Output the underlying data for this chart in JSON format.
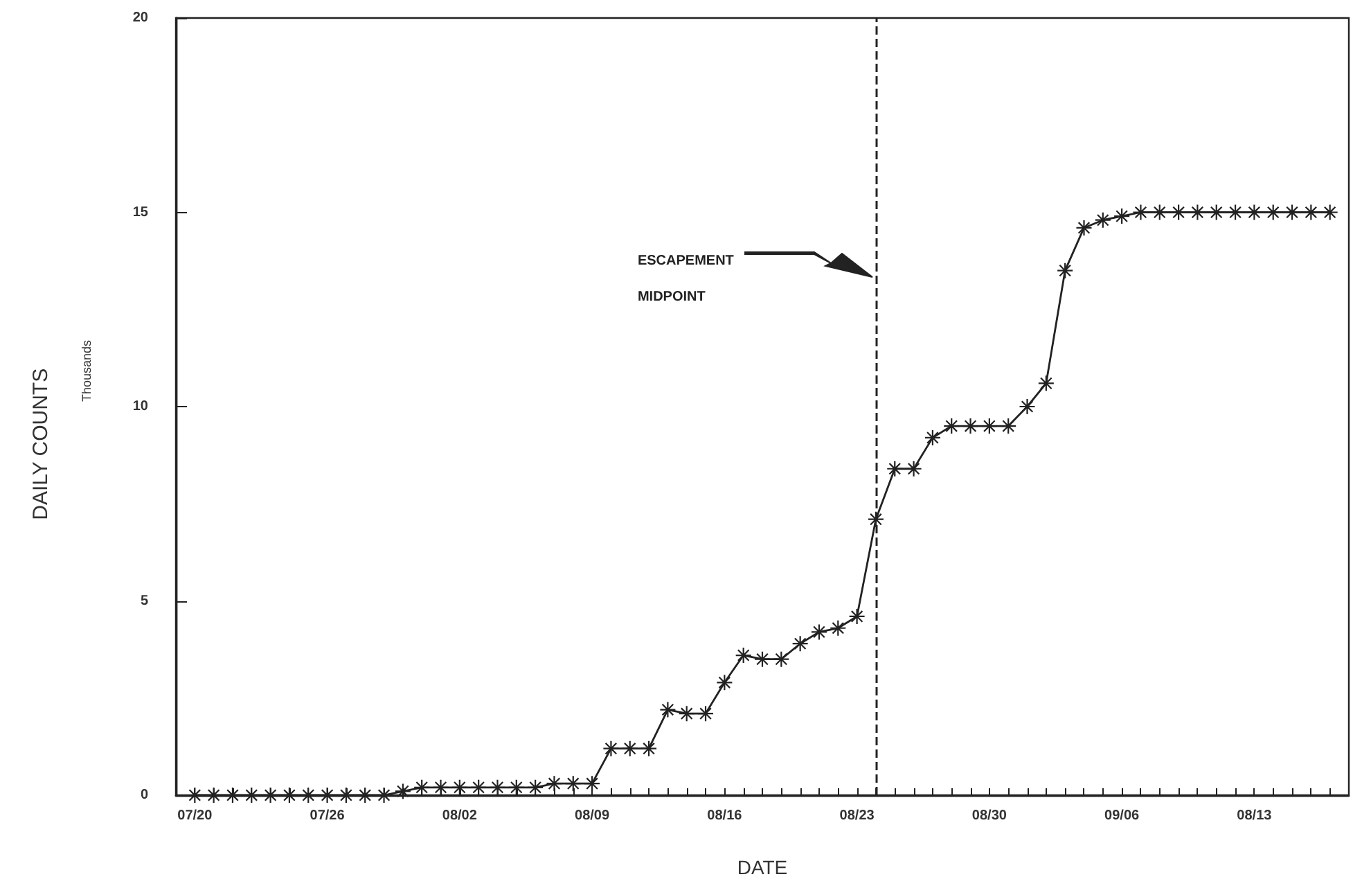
{
  "chart_data": {
    "type": "line",
    "xlabel": "DATE",
    "ylabel": "DAILY COUNTS",
    "annotations": [
      "Thousands"
    ],
    "x": [
      "--07-19",
      "--07-20",
      "--07-21",
      "--07-22",
      "--07-23",
      "--07-24",
      "--07-25",
      "--07-26",
      "--07-27",
      "--07-28",
      "--07-29",
      "--07-30",
      "--07-31",
      "--08-01",
      "--08-02",
      "--08-03",
      "--08-04",
      "--08-05",
      "--08-06",
      "--08-07",
      "--08-08",
      "--08-09",
      "--08-10",
      "--08-11",
      "--08-12",
      "--08-13",
      "--08-14",
      "--08-15",
      "--08-16",
      "--08-17",
      "--08-18",
      "--08-19",
      "--08-20",
      "--08-21",
      "--08-22",
      "--08-23",
      "--08-24",
      "--08-25",
      "--08-26",
      "--08-27",
      "--08-28",
      "--08-29",
      "--08-30",
      "--08-31",
      "--09-01",
      "--09-02",
      "--09-03",
      "--09-04",
      "--09-05",
      "--09-06",
      "--09-07",
      "--09-08",
      "--09-09",
      "--09-10",
      "--09-11",
      "--09-12",
      "--09-13",
      "--09-14",
      "--09-15",
      "--09-16",
      "--09-17"
    ],
    "series": [
      {
        "color": "#222222",
        "values": [
          0,
          0,
          0,
          0,
          0,
          0,
          0,
          0,
          0,
          0,
          0,
          0.1,
          0.2,
          0.2,
          0.2,
          0.2,
          0.2,
          0.2,
          0.2,
          0.3,
          0.3,
          0.3,
          1.2,
          1.2,
          1.2,
          2.2,
          2.1,
          2.1,
          2.9,
          3.6,
          3.5,
          3.5,
          3.9,
          4.2,
          4.3,
          4.6,
          7.1,
          8.4,
          8.4,
          9.2,
          9.5,
          9.5,
          9.5,
          9.5,
          10,
          10.6,
          13.5,
          14.6,
          14.8,
          14.9,
          15,
          15,
          15,
          15,
          15,
          15,
          15,
          15,
          15,
          15,
          15
        ]
      }
    ],
    "xlim": [
      "--07-18",
      "--09-18"
    ],
    "xticks": [
      {
        "value": "--07-19",
        "label": "07/20"
      },
      {
        "value": "--07-20",
        "label": null
      },
      {
        "value": "--07-21",
        "label": null
      },
      {
        "value": "--07-22",
        "label": null
      },
      {
        "value": "--07-23",
        "label": null
      },
      {
        "value": "--07-24",
        "label": null
      },
      {
        "value": "--07-25",
        "label": null
      },
      {
        "value": "--07-26",
        "label": "07/26"
      },
      {
        "value": "--07-27",
        "label": null
      },
      {
        "value": "--07-28",
        "label": null
      },
      {
        "value": "--07-29",
        "label": null
      },
      {
        "value": "--07-30",
        "label": null
      },
      {
        "value": "--07-31",
        "label": null
      },
      {
        "value": "--08-01",
        "label": null
      },
      {
        "value": "--08-02",
        "label": "08/02"
      },
      {
        "value": "--08-03",
        "label": null
      },
      {
        "value": "--08-04",
        "label": null
      },
      {
        "value": "--08-05",
        "label": null
      },
      {
        "value": "--08-06",
        "label": null
      },
      {
        "value": "--08-07",
        "label": null
      },
      {
        "value": "--08-08",
        "label": null
      },
      {
        "value": "--08-09",
        "label": "08/09"
      },
      {
        "value": "--08-10",
        "label": null
      },
      {
        "value": "--08-11",
        "label": null
      },
      {
        "value": "--08-12",
        "label": null
      },
      {
        "value": "--08-13",
        "label": null
      },
      {
        "value": "--08-14",
        "label": null
      },
      {
        "value": "--08-15",
        "label": null
      },
      {
        "value": "--08-16",
        "label": "08/16"
      },
      {
        "value": "--08-17",
        "label": null
      },
      {
        "value": "--08-18",
        "label": null
      },
      {
        "value": "--08-19",
        "label": null
      },
      {
        "value": "--08-20",
        "label": null
      },
      {
        "value": "--08-21",
        "label": null
      },
      {
        "value": "--08-22",
        "label": null
      },
      {
        "value": "--08-23",
        "label": "08/23"
      },
      {
        "value": "--08-24",
        "label": null
      },
      {
        "value": "--08-25",
        "label": null
      },
      {
        "value": "--08-26",
        "label": null
      },
      {
        "value": "--08-27",
        "label": null
      },
      {
        "value": "--08-28",
        "label": null
      },
      {
        "value": "--08-29",
        "label": null
      },
      {
        "value": "--08-30",
        "label": "08/30"
      },
      {
        "value": "--08-31",
        "label": null
      },
      {
        "value": "--09-01",
        "label": null
      },
      {
        "value": "--09-02",
        "label": null
      },
      {
        "value": "--09-03",
        "label": null
      },
      {
        "value": "--09-04",
        "label": null
      },
      {
        "value": "--09-05",
        "label": null
      },
      {
        "value": "--09-06",
        "label": "09/06"
      },
      {
        "value": "--09-07",
        "label": null
      },
      {
        "value": "--09-08",
        "label": null
      },
      {
        "value": "--09-09",
        "label": null
      },
      {
        "value": "--09-10",
        "label": null
      },
      {
        "value": "--09-11",
        "label": null
      },
      {
        "value": "--09-12",
        "label": null
      },
      {
        "value": "--09-13",
        "label": "08/13"
      },
      {
        "value": "--09-14",
        "label": null
      },
      {
        "value": "--09-15",
        "label": null
      },
      {
        "value": "--09-16",
        "label": null
      },
      {
        "value": "--09-17",
        "label": null
      }
    ],
    "ylim": [
      0,
      20
    ],
    "yticks": [
      0,
      5,
      10,
      15,
      20
    ],
    "ref_lines": [
      {
        "axis": "x",
        "value": "--08-24",
        "label": "ESCAPEMENT MIDPOINT",
        "line_style": "dashed",
        "color": "#222222"
      }
    ],
    "grid": false,
    "marker": "star",
    "line_style": "solid"
  }
}
